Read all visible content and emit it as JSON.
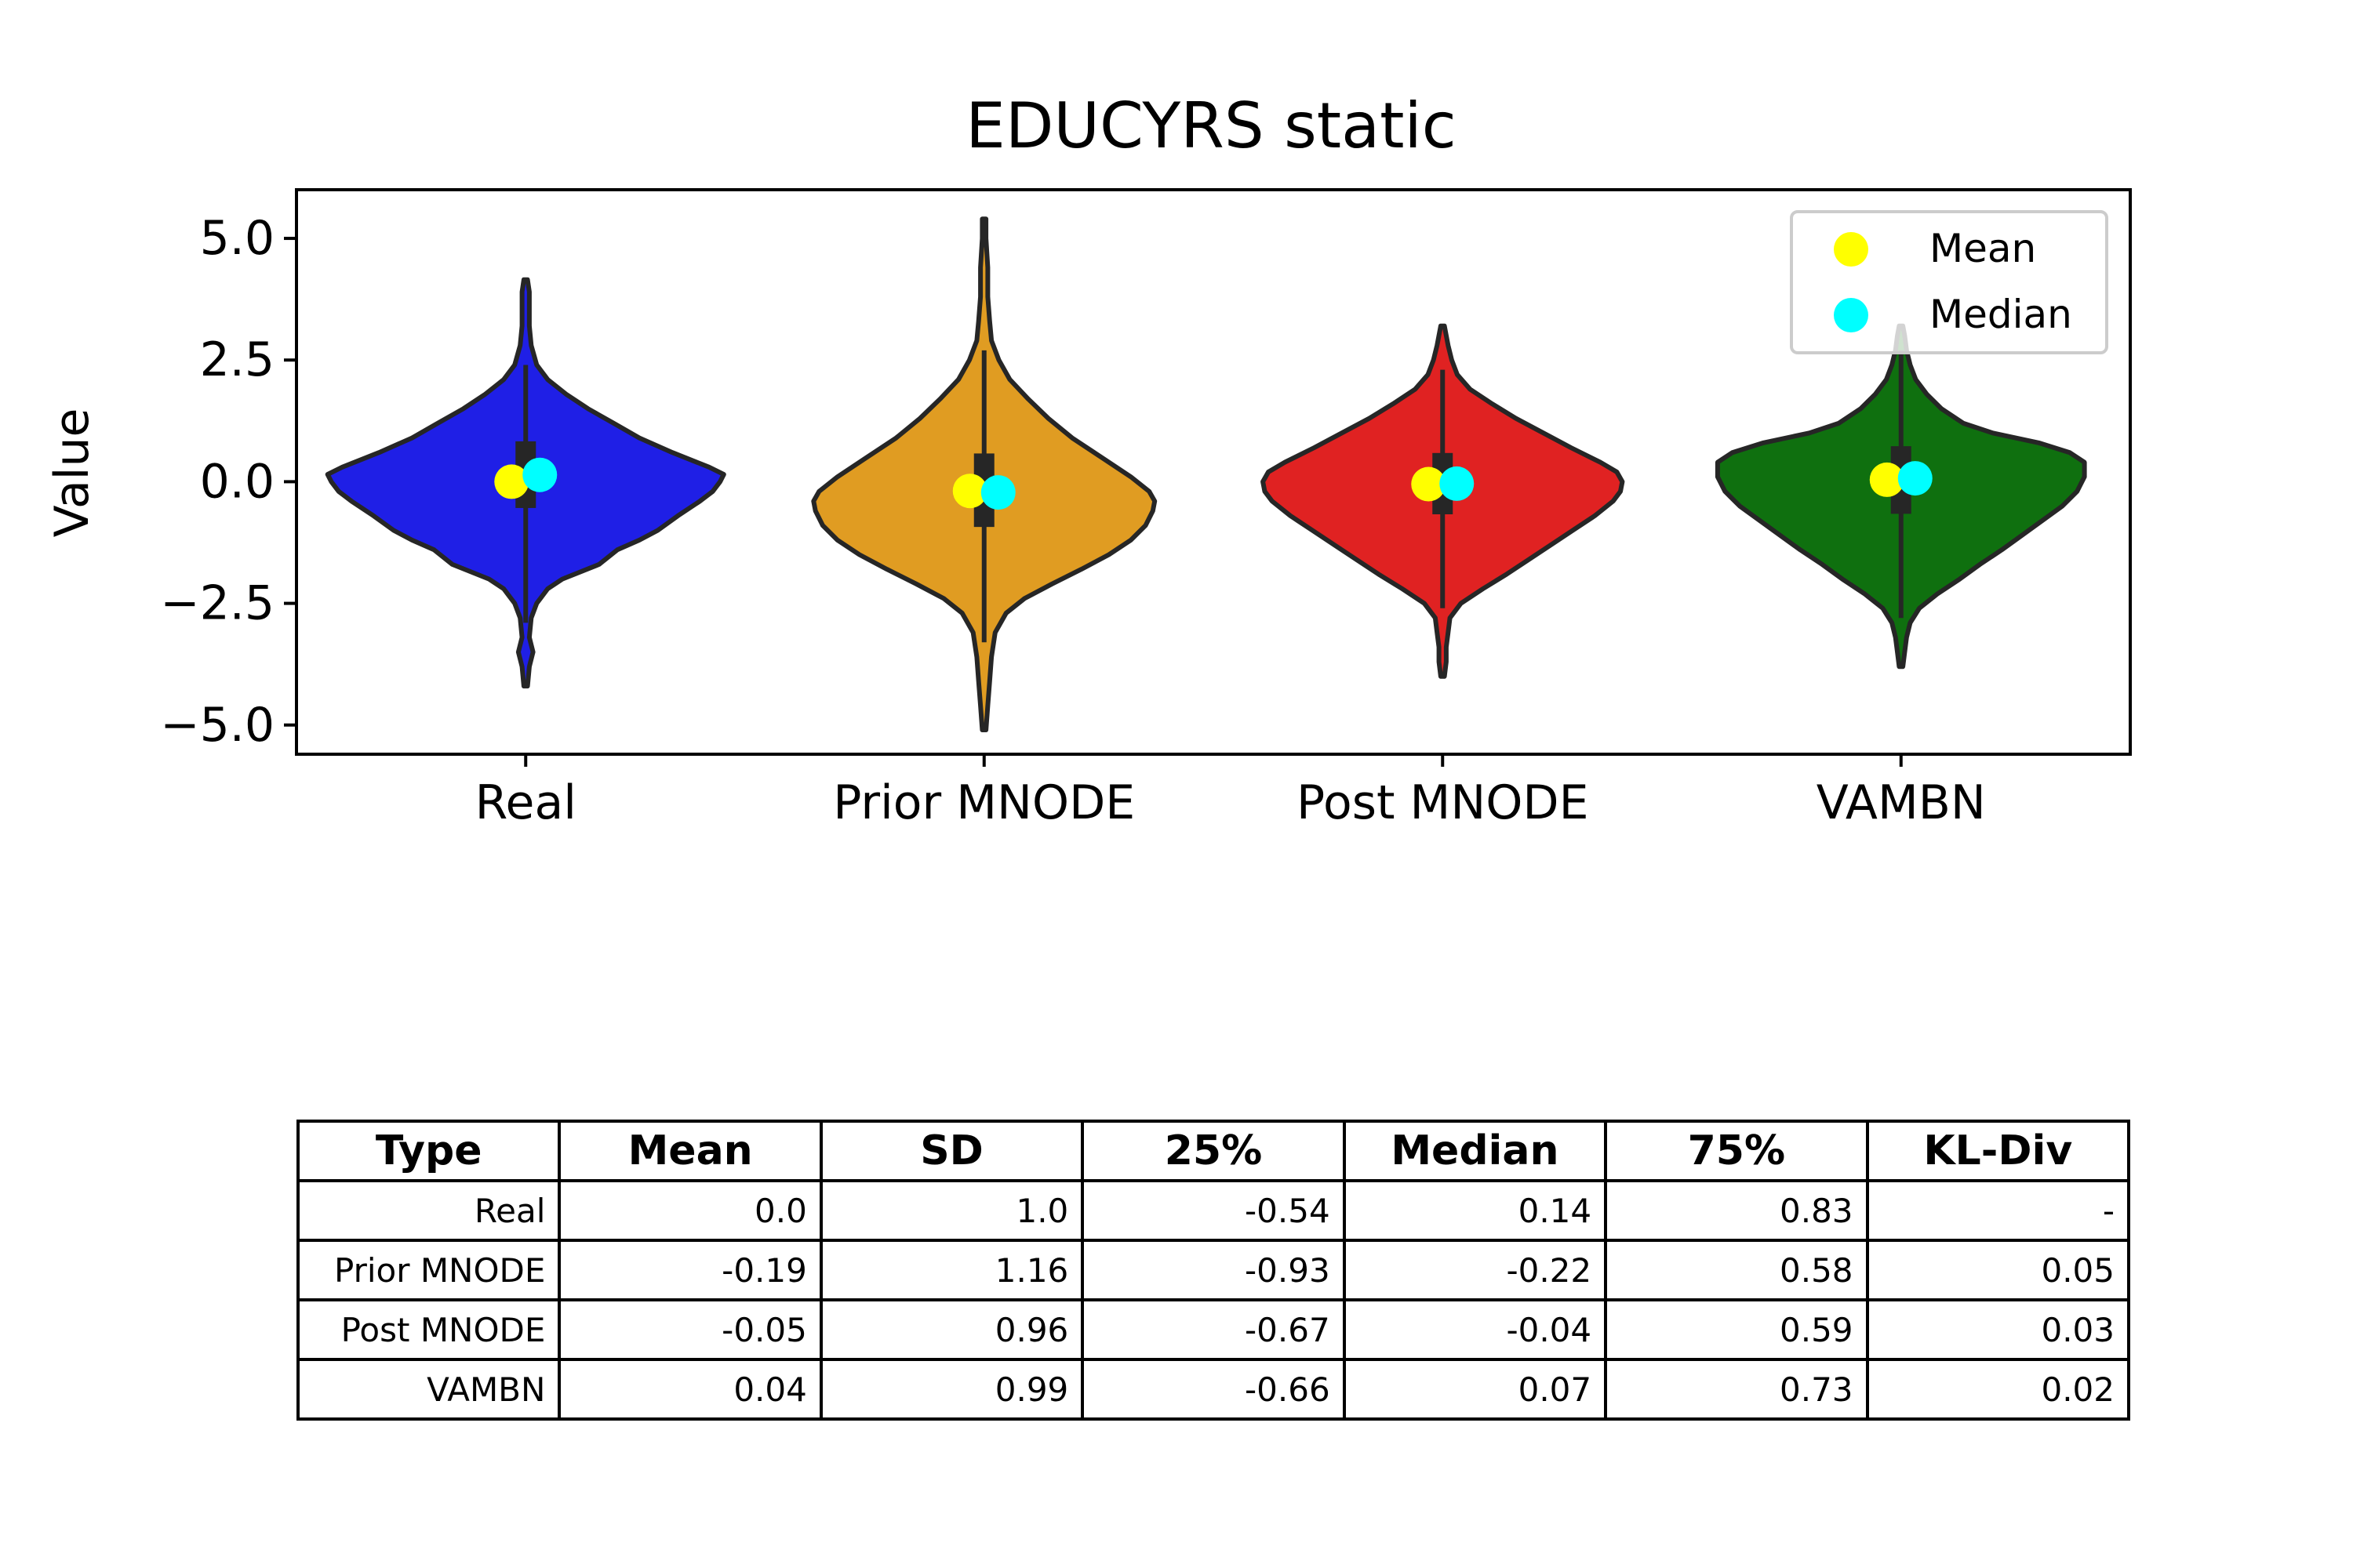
{
  "chart_data": {
    "type": "violin",
    "title": "EDUCYRS static",
    "ylabel": "Value",
    "xlabel": "",
    "ylim": [
      -5.6,
      6.0
    ],
    "yticks": [
      5.0,
      2.5,
      0.0,
      -2.5,
      -5.0
    ],
    "ytick_labels": [
      "5.0",
      "2.5",
      "0.0",
      "−2.5",
      "−5.0"
    ],
    "categories": [
      "Real",
      "Prior MNODE",
      "Post MNODE",
      "VAMBN"
    ],
    "colors": {
      "Real": "#1f1fe6",
      "Prior MNODE": "#e09c22",
      "Post MNODE": "#e02222",
      "VAMBN": "#0f700f",
      "outline": "#262626",
      "mean_marker": "#ffff00",
      "median_marker": "#00ffff"
    },
    "legend": {
      "placement": "top-right",
      "entries": [
        {
          "label": "Mean",
          "color": "#ffff00"
        },
        {
          "label": "Median",
          "color": "#00ffff"
        }
      ]
    },
    "violins": [
      {
        "name": "Real",
        "mean": 0.0,
        "median": 0.14,
        "q1": -0.54,
        "q3": 0.83,
        "whisker_low": -2.9,
        "whisker_high": 2.4,
        "min": -4.2,
        "max": 4.15,
        "profile": [
          [
            -4.2,
            0.01
          ],
          [
            -3.8,
            0.02
          ],
          [
            -3.5,
            0.04
          ],
          [
            -3.2,
            0.02
          ],
          [
            -2.8,
            0.03
          ],
          [
            -2.5,
            0.06
          ],
          [
            -2.2,
            0.12
          ],
          [
            -2.0,
            0.2
          ],
          [
            -1.7,
            0.4
          ],
          [
            -1.4,
            0.5
          ],
          [
            -1.2,
            0.62
          ],
          [
            -1.0,
            0.72
          ],
          [
            -0.7,
            0.83
          ],
          [
            -0.4,
            0.95
          ],
          [
            -0.2,
            1.02
          ],
          [
            0.0,
            1.06
          ],
          [
            0.15,
            1.08
          ],
          [
            0.3,
            1.0
          ],
          [
            0.6,
            0.8
          ],
          [
            0.9,
            0.62
          ],
          [
            1.2,
            0.48
          ],
          [
            1.5,
            0.34
          ],
          [
            1.8,
            0.22
          ],
          [
            2.1,
            0.12
          ],
          [
            2.4,
            0.06
          ],
          [
            2.8,
            0.03
          ],
          [
            3.2,
            0.02
          ],
          [
            3.6,
            0.02
          ],
          [
            3.9,
            0.02
          ],
          [
            4.15,
            0.01
          ]
        ]
      },
      {
        "name": "Prior MNODE",
        "mean": -0.19,
        "median": -0.22,
        "q1": -0.93,
        "q3": 0.58,
        "whisker_low": -3.3,
        "whisker_high": 2.7,
        "min": -5.1,
        "max": 5.4,
        "profile": [
          [
            -5.1,
            0.01
          ],
          [
            -4.6,
            0.02
          ],
          [
            -4.1,
            0.03
          ],
          [
            -3.6,
            0.04
          ],
          [
            -3.1,
            0.06
          ],
          [
            -2.7,
            0.12
          ],
          [
            -2.4,
            0.22
          ],
          [
            -2.1,
            0.37
          ],
          [
            -1.8,
            0.53
          ],
          [
            -1.5,
            0.68
          ],
          [
            -1.2,
            0.8
          ],
          [
            -0.9,
            0.88
          ],
          [
            -0.6,
            0.92
          ],
          [
            -0.4,
            0.93
          ],
          [
            -0.2,
            0.9
          ],
          [
            0.1,
            0.8
          ],
          [
            0.5,
            0.64
          ],
          [
            0.9,
            0.48
          ],
          [
            1.3,
            0.35
          ],
          [
            1.7,
            0.24
          ],
          [
            2.1,
            0.14
          ],
          [
            2.5,
            0.08
          ],
          [
            2.9,
            0.04
          ],
          [
            3.3,
            0.03
          ],
          [
            3.8,
            0.02
          ],
          [
            4.4,
            0.02
          ],
          [
            5.0,
            0.01
          ],
          [
            5.4,
            0.01
          ]
        ]
      },
      {
        "name": "Post MNODE",
        "mean": -0.05,
        "median": -0.04,
        "q1": -0.67,
        "q3": 0.59,
        "whisker_low": -2.6,
        "whisker_high": 2.3,
        "min": -4.0,
        "max": 3.2,
        "profile": [
          [
            -4.0,
            0.01
          ],
          [
            -3.7,
            0.02
          ],
          [
            -3.4,
            0.02
          ],
          [
            -3.1,
            0.03
          ],
          [
            -2.8,
            0.04
          ],
          [
            -2.5,
            0.1
          ],
          [
            -2.2,
            0.22
          ],
          [
            -1.9,
            0.35
          ],
          [
            -1.6,
            0.47
          ],
          [
            -1.3,
            0.59
          ],
          [
            -1.0,
            0.71
          ],
          [
            -0.7,
            0.83
          ],
          [
            -0.4,
            0.93
          ],
          [
            -0.2,
            0.97
          ],
          [
            0.0,
            0.98
          ],
          [
            0.2,
            0.95
          ],
          [
            0.4,
            0.86
          ],
          [
            0.7,
            0.7
          ],
          [
            1.0,
            0.55
          ],
          [
            1.3,
            0.4
          ],
          [
            1.6,
            0.27
          ],
          [
            1.9,
            0.15
          ],
          [
            2.2,
            0.08
          ],
          [
            2.5,
            0.05
          ],
          [
            2.8,
            0.03
          ],
          [
            3.2,
            0.01
          ]
        ]
      },
      {
        "name": "VAMBN",
        "mean": 0.04,
        "median": 0.07,
        "q1": -0.66,
        "q3": 0.73,
        "whisker_low": -2.8,
        "whisker_high": 2.7,
        "min": -3.8,
        "max": 3.2,
        "profile": [
          [
            -3.8,
            0.01
          ],
          [
            -3.5,
            0.02
          ],
          [
            -3.2,
            0.03
          ],
          [
            -2.9,
            0.05
          ],
          [
            -2.6,
            0.1
          ],
          [
            -2.3,
            0.2
          ],
          [
            -2.0,
            0.32
          ],
          [
            -1.7,
            0.43
          ],
          [
            -1.4,
            0.55
          ],
          [
            -1.1,
            0.66
          ],
          [
            -0.8,
            0.77
          ],
          [
            -0.5,
            0.88
          ],
          [
            -0.2,
            0.96
          ],
          [
            0.1,
            1.0
          ],
          [
            0.4,
            1.0
          ],
          [
            0.6,
            0.92
          ],
          [
            0.8,
            0.75
          ],
          [
            1.0,
            0.5
          ],
          [
            1.2,
            0.34
          ],
          [
            1.5,
            0.22
          ],
          [
            1.8,
            0.14
          ],
          [
            2.1,
            0.08
          ],
          [
            2.4,
            0.05
          ],
          [
            2.7,
            0.03
          ],
          [
            3.0,
            0.02
          ],
          [
            3.2,
            0.01
          ]
        ]
      }
    ]
  },
  "table": {
    "headers": [
      "Type",
      "Mean",
      "SD",
      "25%",
      "Median",
      "75%",
      "KL-Div"
    ],
    "rows": [
      [
        "Real",
        "0.0",
        "1.0",
        "-0.54",
        "0.14",
        "0.83",
        "-"
      ],
      [
        "Prior MNODE",
        "-0.19",
        "1.16",
        "-0.93",
        "-0.22",
        "0.58",
        "0.05"
      ],
      [
        "Post MNODE",
        "-0.05",
        "0.96",
        "-0.67",
        "-0.04",
        "0.59",
        "0.03"
      ],
      [
        "VAMBN",
        "0.04",
        "0.99",
        "-0.66",
        "0.07",
        "0.73",
        "0.02"
      ]
    ]
  }
}
